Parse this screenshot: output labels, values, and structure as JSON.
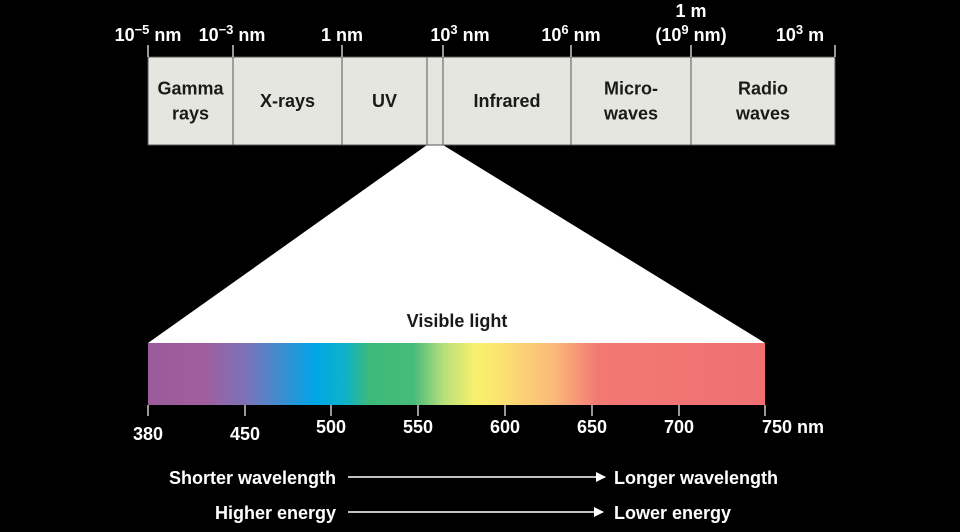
{
  "top_scale": {
    "ticks": [
      {
        "lines": [
          {
            "text": "10",
            "sup": "−5",
            "after": " nm"
          }
        ]
      },
      {
        "lines": [
          {
            "text": "10",
            "sup": "−3",
            "after": " nm"
          }
        ]
      },
      {
        "lines": [
          {
            "text": "1 nm"
          }
        ]
      },
      {
        "lines": [
          {
            "text": "10",
            "sup": "3",
            "after": " nm"
          }
        ]
      },
      {
        "lines": [
          {
            "text": "10",
            "sup": "6",
            "after": " nm"
          }
        ]
      },
      {
        "lines": [
          {
            "text": "1 m"
          },
          {
            "text": "(10",
            "sup": "9",
            "after": " nm)"
          }
        ]
      },
      {
        "lines": [
          {
            "text": "10",
            "sup": "3",
            "after": " m"
          }
        ]
      }
    ]
  },
  "bands": [
    {
      "lines": [
        "Gamma",
        "rays"
      ]
    },
    {
      "lines": [
        "X-rays"
      ]
    },
    {
      "lines": [
        "UV"
      ]
    },
    {
      "lines": []
    },
    {
      "lines": [
        "Infrared"
      ]
    },
    {
      "lines": [
        "Micro-",
        "waves"
      ]
    },
    {
      "lines": [
        "Radio",
        "waves"
      ]
    }
  ],
  "visible": {
    "title": "Visible light",
    "ticks": [
      "380",
      "450",
      "500",
      "550",
      "600",
      "650",
      "700",
      "750 nm"
    ]
  },
  "arrows": [
    {
      "from": "Shorter wavelength",
      "to": "Longer wavelength"
    },
    {
      "from": "Higher energy",
      "to": "Lower energy"
    }
  ]
}
